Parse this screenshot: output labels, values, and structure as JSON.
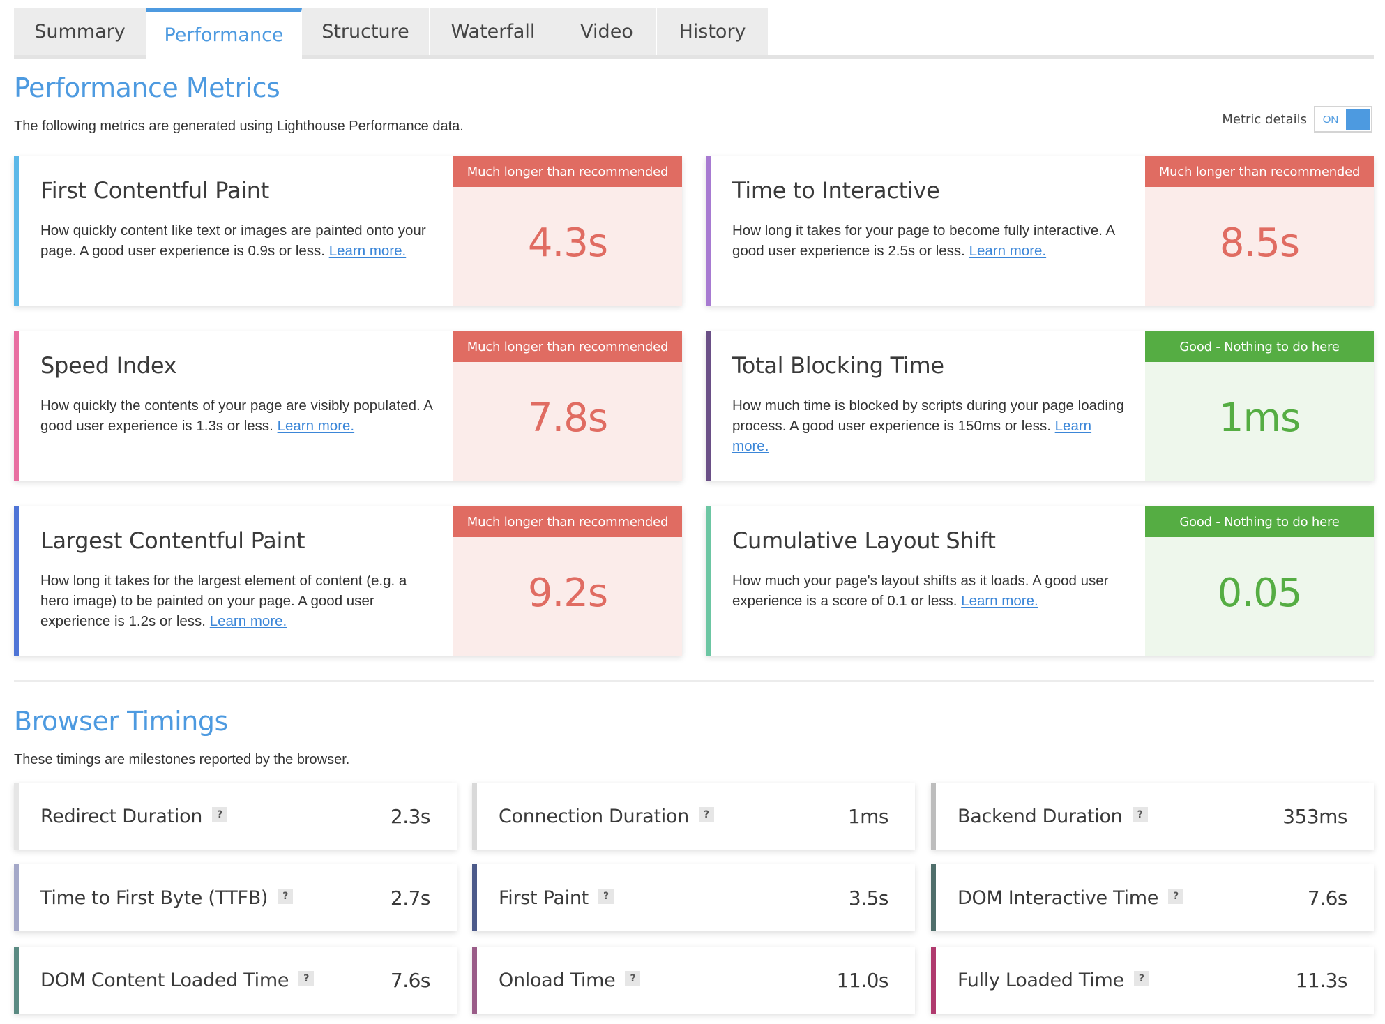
{
  "tabs": [
    {
      "label": "Summary",
      "active": false
    },
    {
      "label": "Performance",
      "active": true
    },
    {
      "label": "Structure",
      "active": false
    },
    {
      "label": "Waterfall",
      "active": false
    },
    {
      "label": "Video",
      "active": false
    },
    {
      "label": "History",
      "active": false
    }
  ],
  "performance": {
    "title": "Performance Metrics",
    "subtitle": "The following metrics are generated using Lighthouse Performance data.",
    "metric_details_label": "Metric details",
    "metric_details_state": "ON",
    "metrics": [
      {
        "name": "First Contentful Paint",
        "desc": "How quickly content like text or images are painted onto your page. A good user experience is 0.9s or less.",
        "link": "Learn more.",
        "badge": "Much longer than recommended",
        "value": "4.3s",
        "status": "bad",
        "accent": "#5cb8e8"
      },
      {
        "name": "Time to Interactive",
        "desc": "How long it takes for your page to become fully interactive. A good user experience is 2.5s or less.",
        "link": "Learn more.",
        "badge": "Much longer than recommended",
        "value": "8.5s",
        "status": "bad",
        "accent": "#a77ad1"
      },
      {
        "name": "Speed Index",
        "desc": "How quickly the contents of your page are visibly populated. A good user experience is 1.3s or less.",
        "link": "Learn more.",
        "badge": "Much longer than recommended",
        "value": "7.8s",
        "status": "bad",
        "accent": "#e86fa1"
      },
      {
        "name": "Total Blocking Time",
        "desc": "How much time is blocked by scripts during your page loading process. A good user experience is 150ms or less.",
        "link": "Learn more.",
        "badge": "Good - Nothing to do here",
        "value": "1ms",
        "status": "good",
        "accent": "#6a4f86"
      },
      {
        "name": "Largest Contentful Paint",
        "desc": "How long it takes for the largest element of content (e.g. a hero image) to be painted on your page. A good user experience is 1.2s or less.",
        "link": "Learn more.",
        "badge": "Much longer than recommended",
        "value": "9.2s",
        "status": "bad",
        "accent": "#4e74d6"
      },
      {
        "name": "Cumulative Layout Shift",
        "desc": "How much your page's layout shifts as it loads. A good user experience is a score of 0.1 or less.",
        "link": "Learn more.",
        "badge": "Good - Nothing to do here",
        "value": "0.05",
        "status": "good",
        "accent": "#6cc6a3"
      }
    ]
  },
  "browser": {
    "title": "Browser Timings",
    "subtitle": "These timings are milestones reported by the browser.",
    "help_glyph": "?",
    "timings": [
      {
        "name": "Redirect Duration",
        "value": "2.3s",
        "accent": "#e6e6e6"
      },
      {
        "name": "Connection Duration",
        "value": "1ms",
        "accent": "#d9d9d9"
      },
      {
        "name": "Backend Duration",
        "value": "353ms",
        "accent": "#bdbdbd"
      },
      {
        "name": "Time to First Byte (TTFB)",
        "value": "2.7s",
        "accent": "#a4a8c8"
      },
      {
        "name": "First Paint",
        "value": "3.5s",
        "accent": "#4c5a8a"
      },
      {
        "name": "DOM Interactive Time",
        "value": "7.6s",
        "accent": "#4f6e6b"
      },
      {
        "name": "DOM Content Loaded Time",
        "value": "7.6s",
        "accent": "#5a8a82"
      },
      {
        "name": "Onload Time",
        "value": "11.0s",
        "accent": "#9a5c88"
      },
      {
        "name": "Fully Loaded Time",
        "value": "11.3s",
        "accent": "#b03a6e"
      }
    ]
  }
}
